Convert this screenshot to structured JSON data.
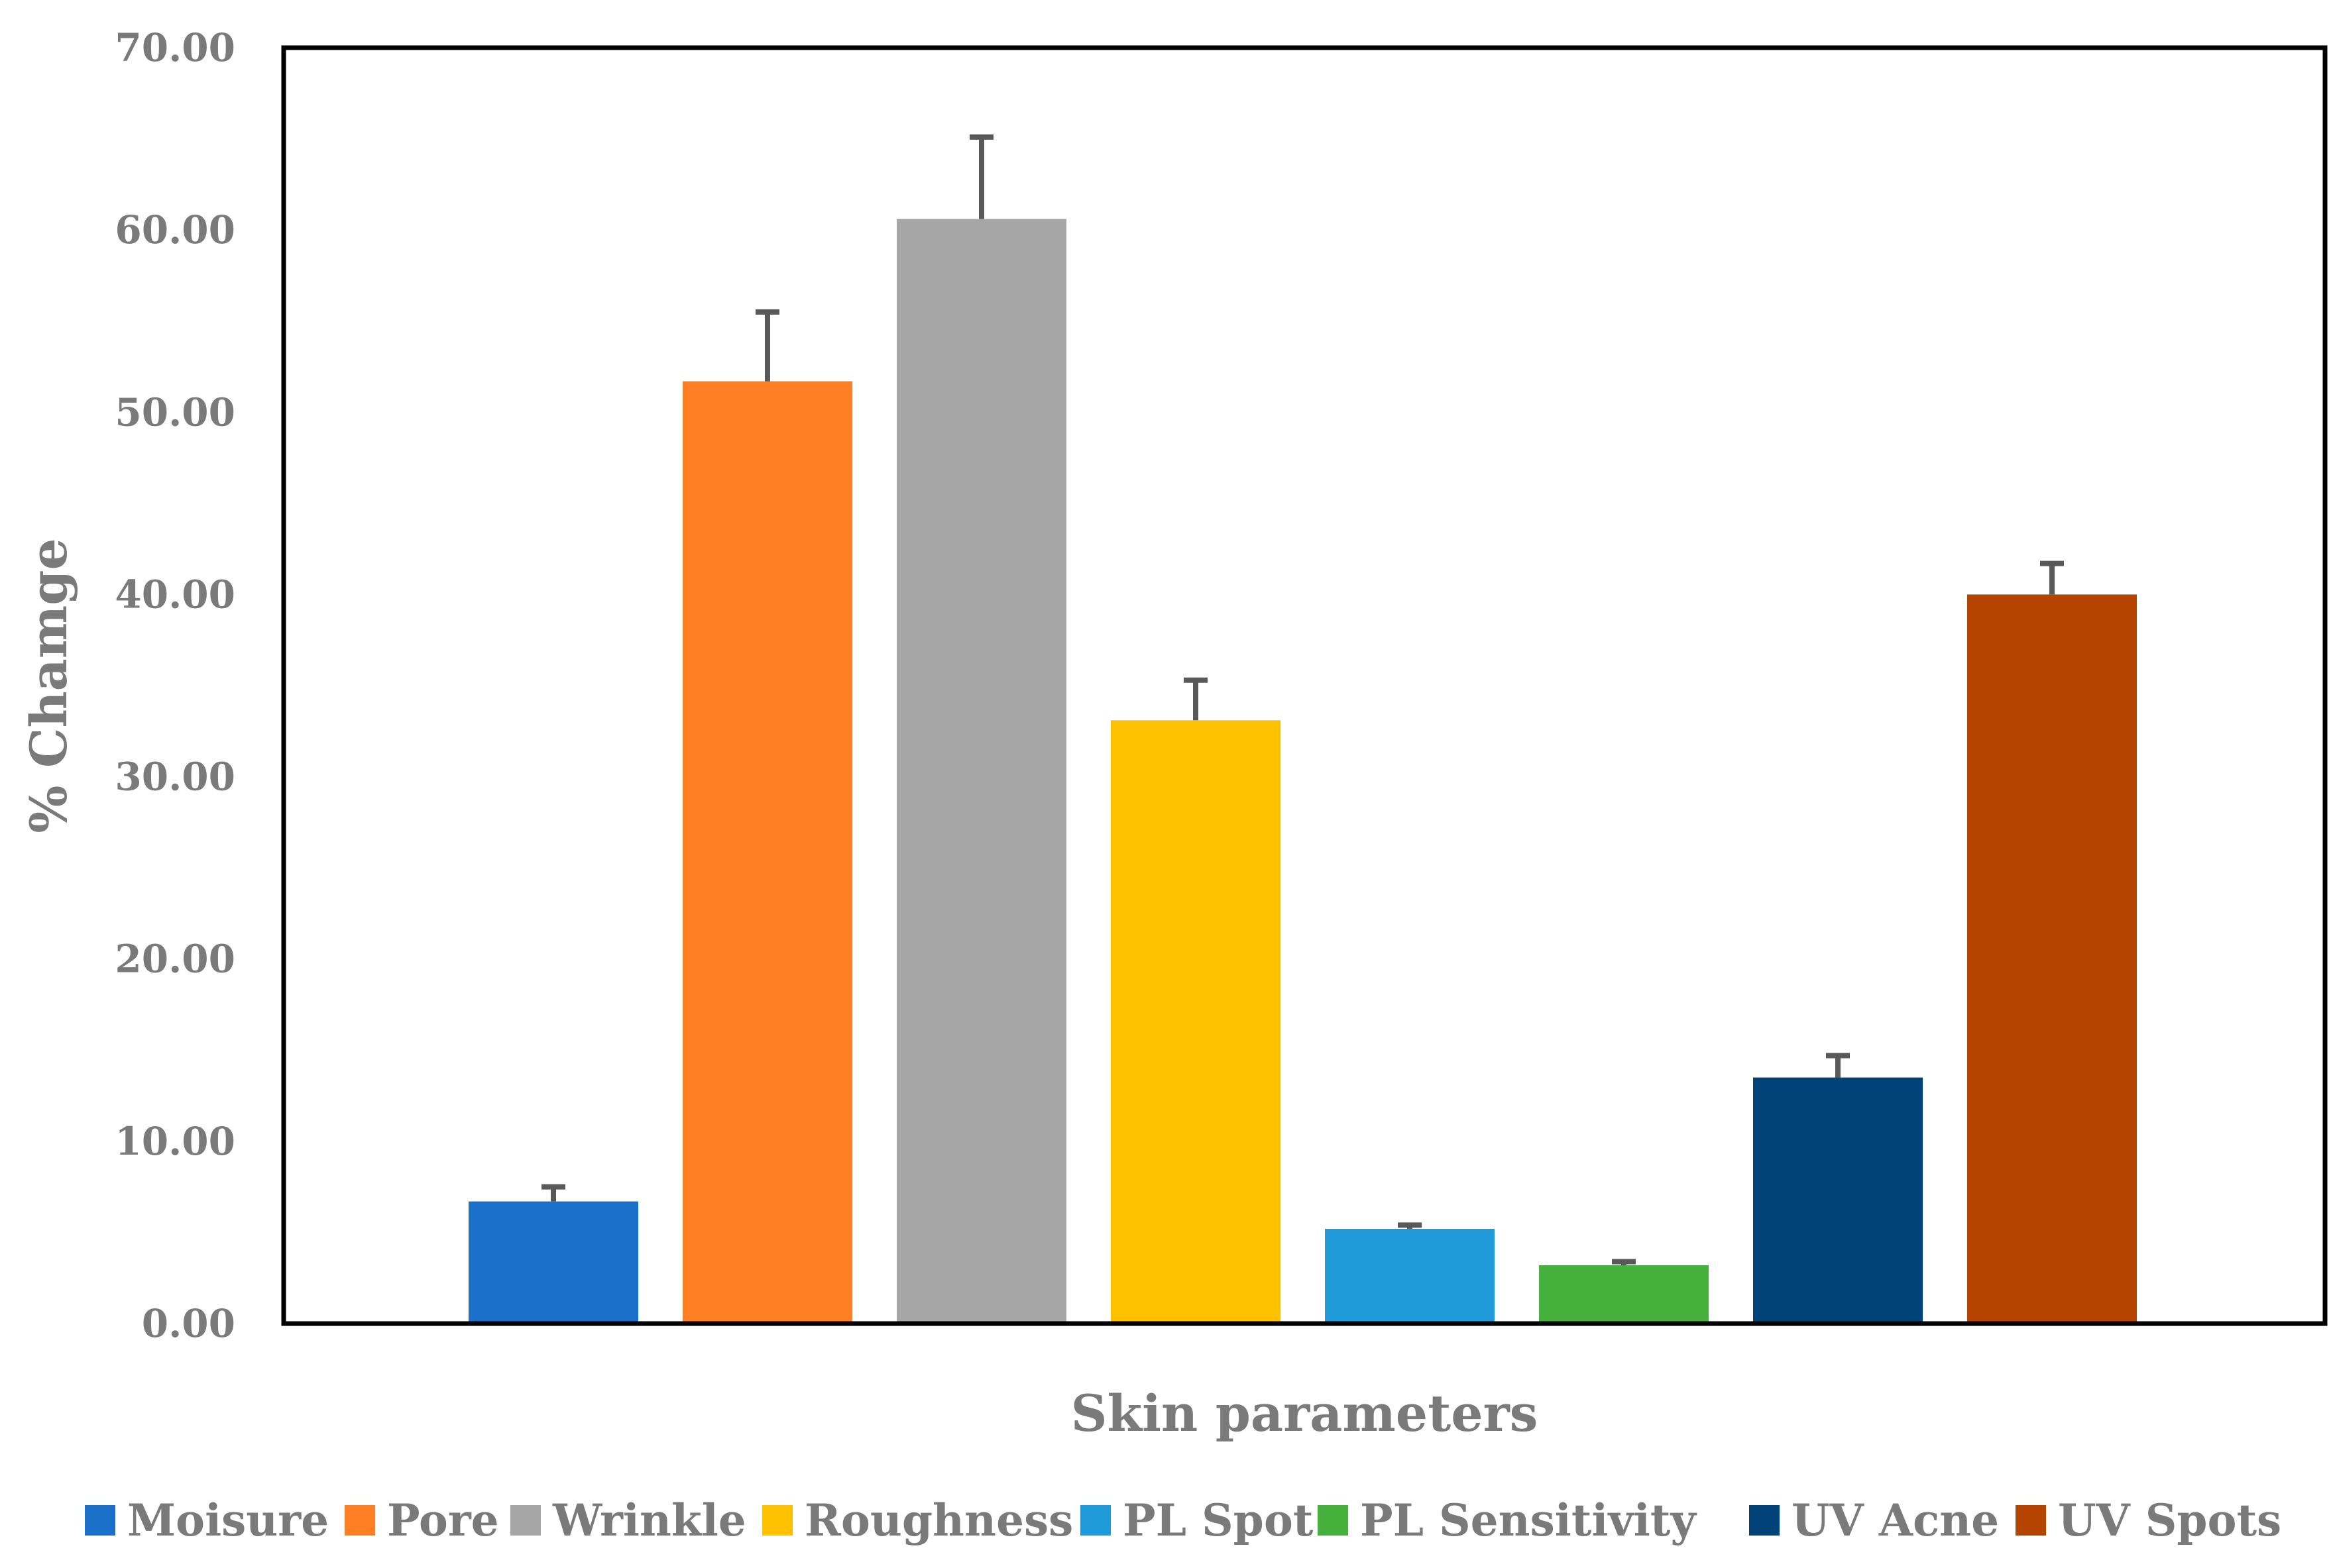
{
  "chart_data": {
    "type": "bar",
    "title": "",
    "xlabel": "Skin parameters",
    "ylabel": "% Chamge",
    "ylim": [
      0,
      70
    ],
    "yticks": [
      0,
      10,
      20,
      30,
      40,
      50,
      60,
      70
    ],
    "ytick_labels": [
      "0.00",
      "10.00",
      "20.00",
      "30.00",
      "40.00",
      "50.00",
      "60.00",
      "70.00"
    ],
    "grid": false,
    "legend_position": "bottom",
    "categories": [
      "Moisure",
      "Pore",
      "Wrinkle",
      "Roughness",
      "PL Spot",
      "PL Sensitivity",
      "UV Acne",
      "UV Spots"
    ],
    "values": [
      6.7,
      51.7,
      60.6,
      33.1,
      5.2,
      3.2,
      13.5,
      40.0
    ],
    "errors": [
      0.8,
      3.8,
      4.5,
      2.2,
      0.2,
      0.2,
      1.2,
      1.7
    ],
    "colors": [
      "#1a70c8",
      "#fe7f24",
      "#a6a6a6",
      "#fdc100",
      "#1e9bd8",
      "#46b03c",
      "#004379",
      "#b54400"
    ],
    "error_bar_color": "#595959"
  }
}
